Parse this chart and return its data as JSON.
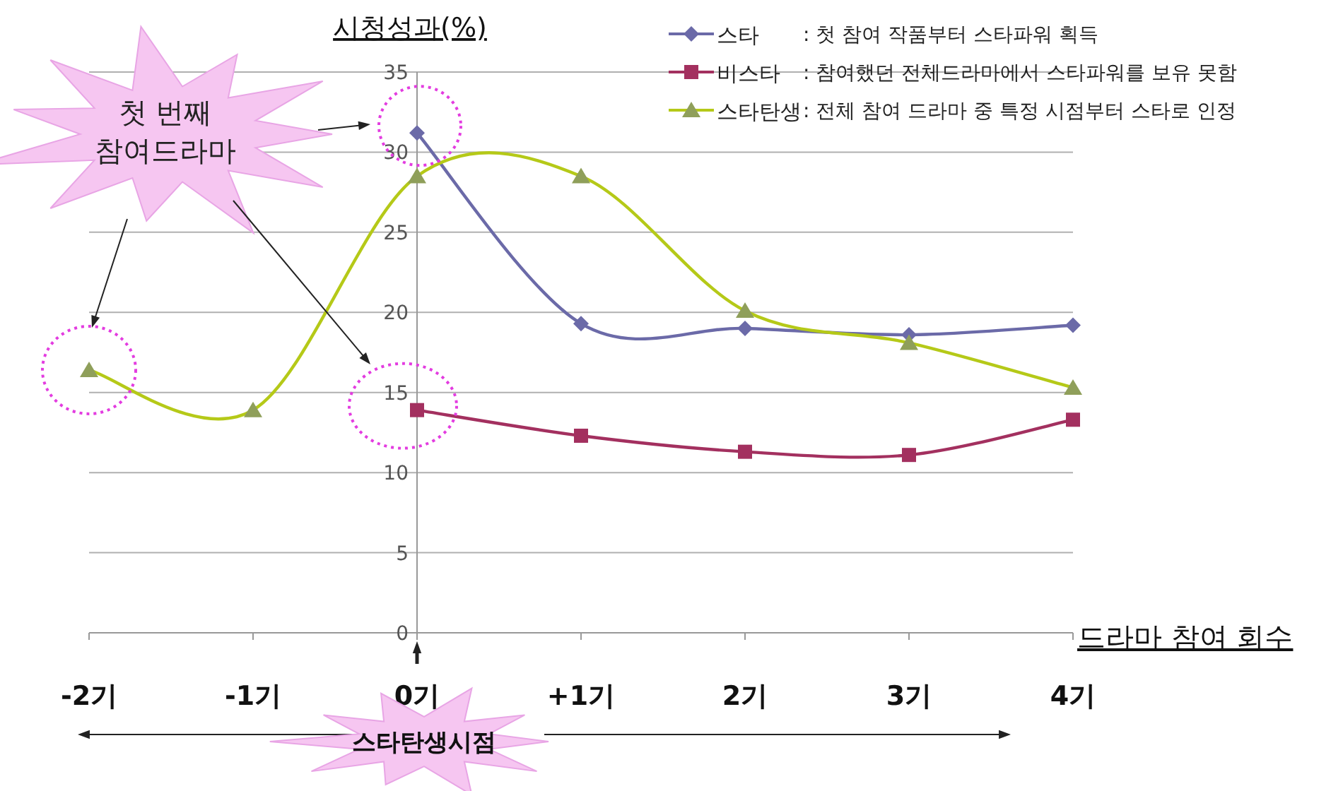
{
  "chart_data": {
    "type": "line",
    "ylabel": "시청성과(%)",
    "xlabel": "드라마 참여 회수",
    "categories": [
      "-2기",
      "-1기",
      "0기",
      "+1기",
      "2기",
      "3기",
      "4기"
    ],
    "series": [
      {
        "name": "스타",
        "color": "#6b6aa8",
        "marker": "diamond",
        "values": [
          null,
          null,
          31.2,
          19.3,
          19.0,
          18.6,
          19.2
        ]
      },
      {
        "name": "비스타",
        "color": "#a3305f",
        "marker": "square",
        "values": [
          null,
          null,
          13.9,
          12.3,
          11.3,
          11.1,
          13.3
        ]
      },
      {
        "name": "스타탄생",
        "color": "#b5c918",
        "marker": "triangle",
        "values": [
          16.4,
          13.9,
          28.5,
          28.5,
          20.1,
          18.1,
          15.3
        ]
      }
    ],
    "annotations": [
      ": 첫 참여 작품부터 스타파워 획득",
      ": 참여했던 전체드라마에서 스타파워를 보유 못함",
      ": 전체 참여 드라마 중 특정 시점부터 스타로 인정",
      "첫 번째\n참여드라마",
      "스타탄생시점"
    ],
    "ylim": [
      0,
      35
    ],
    "yticks": [
      0,
      5,
      10,
      15,
      20,
      25,
      30,
      35
    ],
    "grid": "y",
    "legend": "top right",
    "line_style": "solid"
  }
}
